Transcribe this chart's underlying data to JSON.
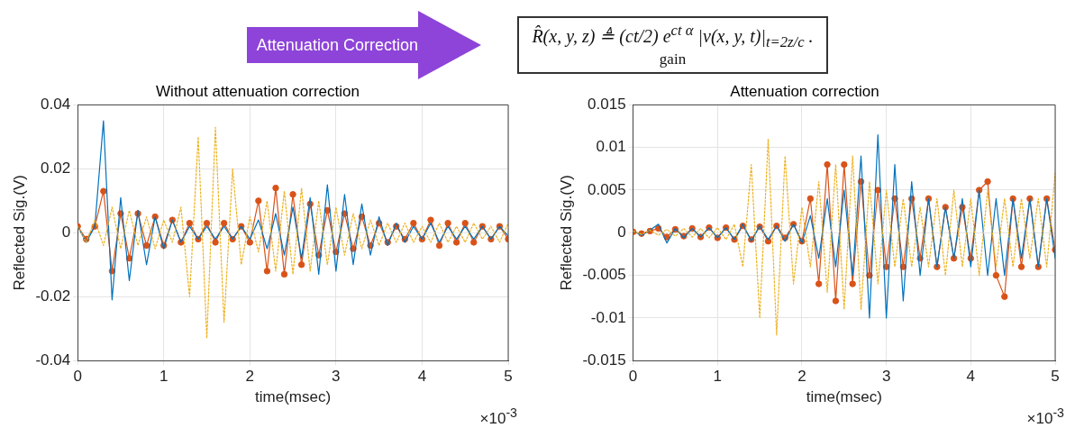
{
  "chart_data": [
    {
      "type": "line",
      "title": "Without attenuation correction",
      "xlabel": "time(msec)",
      "ylabel": "Reflected Sig.(V)",
      "annotations": [
        "×10$^{-3}$"
      ],
      "grid": true,
      "xlim": [
        0,
        5
      ],
      "xticks": [
        0,
        1,
        2,
        3,
        4,
        5
      ],
      "ylim": [
        -0.04,
        0.04
      ],
      "yticks": [
        -0.04,
        -0.02,
        0,
        0.02,
        0.04
      ],
      "x": [
        0,
        0.1,
        0.2,
        0.3,
        0.4,
        0.5,
        0.6,
        0.7,
        0.8,
        0.9,
        1,
        1.1,
        1.2,
        1.3,
        1.4,
        1.5,
        1.6,
        1.7,
        1.8,
        1.9,
        2,
        2.1,
        2.2,
        2.3,
        2.4,
        2.5,
        2.6,
        2.7,
        2.8,
        2.9,
        3,
        3.1,
        3.2,
        3.3,
        3.4,
        3.5,
        3.6,
        3.7,
        3.8,
        3.9,
        4,
        4.1,
        4.2,
        4.3,
        4.4,
        4.5,
        4.6,
        4.7,
        4.8,
        4.9,
        5
      ],
      "series": [
        {
          "color": "#edb120",
          "line_style": "dotted",
          "marker": "none",
          "values": [
            0.002,
            -0.003,
            0.004,
            -0.004,
            0.008,
            -0.005,
            0.007,
            -0.004,
            0.005,
            -0.005,
            0.004,
            -0.003,
            0.008,
            -0.02,
            0.03,
            -0.033,
            0.033,
            -0.028,
            0.02,
            -0.01,
            0.005,
            -0.006,
            0.01,
            -0.012,
            0.013,
            -0.013,
            0.014,
            -0.012,
            0.01,
            -0.01,
            0.008,
            -0.007,
            0.006,
            -0.005,
            0.004,
            -0.004,
            0.003,
            -0.003,
            0.003,
            -0.003,
            0.002,
            -0.003,
            0.003,
            -0.003,
            0.002,
            -0.003,
            0.003,
            -0.002,
            0.002,
            -0.003,
            0.003
          ]
        },
        {
          "color": "#0072bd",
          "line_style": "solid",
          "marker": "none",
          "values": [
            0.002,
            -0.003,
            0.002,
            0.035,
            -0.021,
            0.011,
            -0.015,
            0.007,
            -0.01,
            0.005,
            -0.005,
            0.004,
            -0.003,
            0.002,
            -0.002,
            0.002,
            -0.002,
            0.002,
            -0.002,
            0.002,
            -0.002,
            0.004,
            -0.005,
            0.006,
            -0.007,
            0.008,
            -0.008,
            0.011,
            -0.013,
            0.015,
            -0.012,
            0.012,
            -0.01,
            0.009,
            -0.007,
            0.005,
            -0.004,
            0.003,
            -0.003,
            0.002,
            -0.002,
            0.003,
            -0.003,
            0.002,
            -0.002,
            0.002,
            -0.002,
            0.002,
            -0.002,
            0.002,
            -0.001
          ]
        },
        {
          "color": "#d95319",
          "line_style": "solid",
          "marker": "circle",
          "values": [
            0.002,
            -0.002,
            0.002,
            0.013,
            -0.012,
            0.006,
            -0.008,
            0.006,
            -0.004,
            0.005,
            -0.004,
            0.004,
            -0.003,
            0.003,
            -0.002,
            0.003,
            -0.003,
            0.003,
            -0.002,
            0.002,
            -0.003,
            0.01,
            -0.012,
            0.014,
            -0.013,
            0.012,
            -0.01,
            0.009,
            -0.007,
            0.007,
            -0.006,
            0.006,
            -0.005,
            0.005,
            -0.004,
            0.003,
            -0.003,
            0.002,
            -0.002,
            0.003,
            -0.002,
            0.004,
            -0.004,
            0.003,
            -0.003,
            0.003,
            -0.003,
            0.002,
            -0.002,
            0.002,
            -0.002
          ]
        }
      ]
    },
    {
      "type": "line",
      "title": "Attenuation correction",
      "xlabel": "time(msec)",
      "ylabel": "Reflected Sig.(V)",
      "annotations": [
        "×10$^{-3}$"
      ],
      "grid": true,
      "xlim": [
        0,
        5
      ],
      "xticks": [
        0,
        1,
        2,
        3,
        4,
        5
      ],
      "ylim": [
        -0.015,
        0.015
      ],
      "yticks": [
        -0.015,
        -0.01,
        -0.005,
        0,
        0.005,
        0.01,
        0.015
      ],
      "x": [
        0,
        0.1,
        0.2,
        0.3,
        0.4,
        0.5,
        0.6,
        0.7,
        0.8,
        0.9,
        1,
        1.1,
        1.2,
        1.3,
        1.4,
        1.5,
        1.6,
        1.7,
        1.8,
        1.9,
        2,
        2.1,
        2.2,
        2.3,
        2.4,
        2.5,
        2.6,
        2.7,
        2.8,
        2.9,
        3,
        3.1,
        3.2,
        3.3,
        3.4,
        3.5,
        3.6,
        3.7,
        3.8,
        3.9,
        4,
        4.1,
        4.2,
        4.3,
        4.4,
        4.5,
        4.6,
        4.7,
        4.8,
        4.9,
        5
      ],
      "series": [
        {
          "color": "#edb120",
          "line_style": "dotted",
          "marker": "none",
          "values": [
            0.0002,
            -0.0002,
            0.0003,
            -0.0003,
            0.0004,
            -0.0004,
            0.0005,
            -0.0005,
            0.0005,
            -0.0006,
            0.0006,
            -0.0008,
            0.001,
            -0.004,
            0.008,
            -0.01,
            0.011,
            -0.012,
            0.009,
            -0.006,
            0.003,
            -0.004,
            0.006,
            -0.007,
            0.008,
            -0.009,
            0.009,
            -0.009,
            0.006,
            -0.006,
            0.005,
            -0.004,
            0.004,
            -0.004,
            0.003,
            -0.004,
            0.004,
            -0.005,
            0.005,
            -0.004,
            0.004,
            -0.005,
            0.005,
            -0.004,
            0.004,
            -0.004,
            0.004,
            -0.003,
            0.004,
            -0.004,
            0.007
          ]
        },
        {
          "color": "#0072bd",
          "line_style": "solid",
          "marker": "none",
          "values": [
            0.0002,
            -0.0003,
            0.0003,
            0.001,
            -0.0012,
            0.0005,
            -0.0006,
            0.0005,
            -0.0005,
            0.0006,
            -0.0006,
            0.0006,
            -0.0008,
            0.001,
            -0.001,
            0.0008,
            -0.0008,
            0.0008,
            -0.001,
            0.001,
            -0.0012,
            0.002,
            -0.003,
            0.004,
            -0.004,
            0.005,
            -0.005,
            0.009,
            -0.01,
            0.0115,
            -0.01,
            0.008,
            -0.008,
            0.006,
            -0.005,
            0.004,
            -0.004,
            0.003,
            -0.003,
            0.004,
            -0.004,
            0.005,
            -0.005,
            0.004,
            -0.005,
            0.004,
            -0.003,
            0.004,
            -0.004,
            0.004,
            -0.003
          ]
        },
        {
          "color": "#d95319",
          "line_style": "solid",
          "marker": "circle",
          "values": [
            0.0001,
            -0.0001,
            0.0002,
            0.0005,
            -0.0005,
            0.0004,
            -0.0004,
            0.0005,
            -0.0005,
            0.0006,
            -0.0006,
            0.0006,
            -0.0008,
            0.0008,
            -0.0008,
            0.0007,
            -0.001,
            0.0008,
            -0.0006,
            0.001,
            -0.001,
            0.004,
            -0.006,
            0.008,
            -0.008,
            0.008,
            -0.006,
            0.006,
            -0.005,
            0.005,
            -0.004,
            0.004,
            -0.004,
            0.004,
            -0.003,
            0.004,
            -0.004,
            0.003,
            -0.003,
            0.003,
            -0.003,
            0.005,
            0.006,
            -0.005,
            -0.0075,
            0.004,
            -0.004,
            0.004,
            -0.004,
            0.004,
            -0.002
          ]
        }
      ]
    },
    {
      "type": "other",
      "annotations": [
        "Attenuation Correction",
        "R̂(x, y, z) ≜ (ct/2) e$^{ct α}$ |v(x, y, t)|$_{t=2z/c}$ .",
        "gain"
      ]
    }
  ]
}
